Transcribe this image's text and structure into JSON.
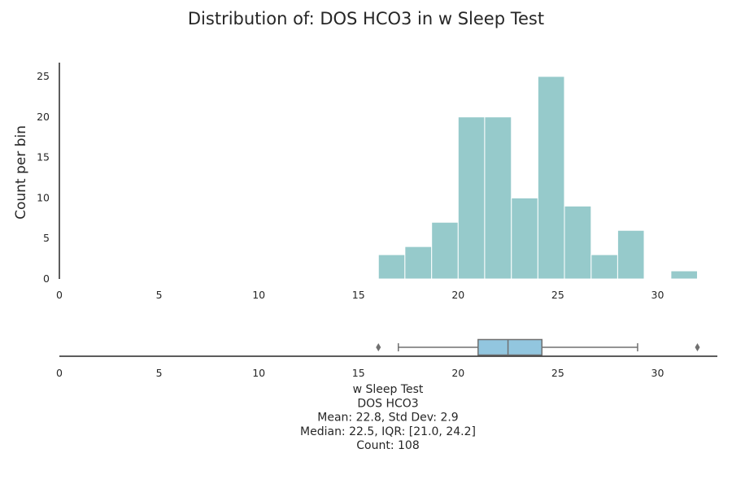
{
  "chart_data": {
    "type": "bar",
    "title": "Distribution of: DOS HCO3 in w Sleep Test",
    "ylabel": "Count per bin",
    "xlim": [
      0,
      33
    ],
    "ylim": [
      0,
      26.5
    ],
    "x_ticks": [
      0,
      5,
      10,
      15,
      20,
      25,
      30
    ],
    "y_ticks": [
      0,
      5,
      10,
      15,
      20,
      25
    ],
    "bar_color": "#96cacb",
    "bins": [
      {
        "x0": 16.0,
        "x1": 17.33,
        "count": 3
      },
      {
        "x0": 17.33,
        "x1": 18.67,
        "count": 4
      },
      {
        "x0": 18.67,
        "x1": 20.0,
        "count": 7
      },
      {
        "x0": 20.0,
        "x1": 21.33,
        "count": 20
      },
      {
        "x0": 21.33,
        "x1": 22.67,
        "count": 20
      },
      {
        "x0": 22.67,
        "x1": 24.0,
        "count": 10
      },
      {
        "x0": 24.0,
        "x1": 25.33,
        "count": 25
      },
      {
        "x0": 25.33,
        "x1": 26.67,
        "count": 9
      },
      {
        "x0": 26.67,
        "x1": 28.0,
        "count": 3
      },
      {
        "x0": 28.0,
        "x1": 29.33,
        "count": 6
      },
      {
        "x0": 29.33,
        "x1": 30.67,
        "count": 0
      },
      {
        "x0": 30.67,
        "x1": 32.0,
        "count": 1
      }
    ],
    "boxplot": {
      "q1": 21.0,
      "median": 22.5,
      "q3": 24.2,
      "whisker_low": 17.0,
      "whisker_high": 29.0,
      "outliers": [
        16.0,
        32.0
      ],
      "color": "#92c6df"
    },
    "stats_lines": [
      "w Sleep Test",
      "DOS HCO3",
      "Mean: 22.8, Std Dev: 2.9",
      "Median: 22.5, IQR: [21.0, 24.2]",
      "Count: 108"
    ]
  }
}
